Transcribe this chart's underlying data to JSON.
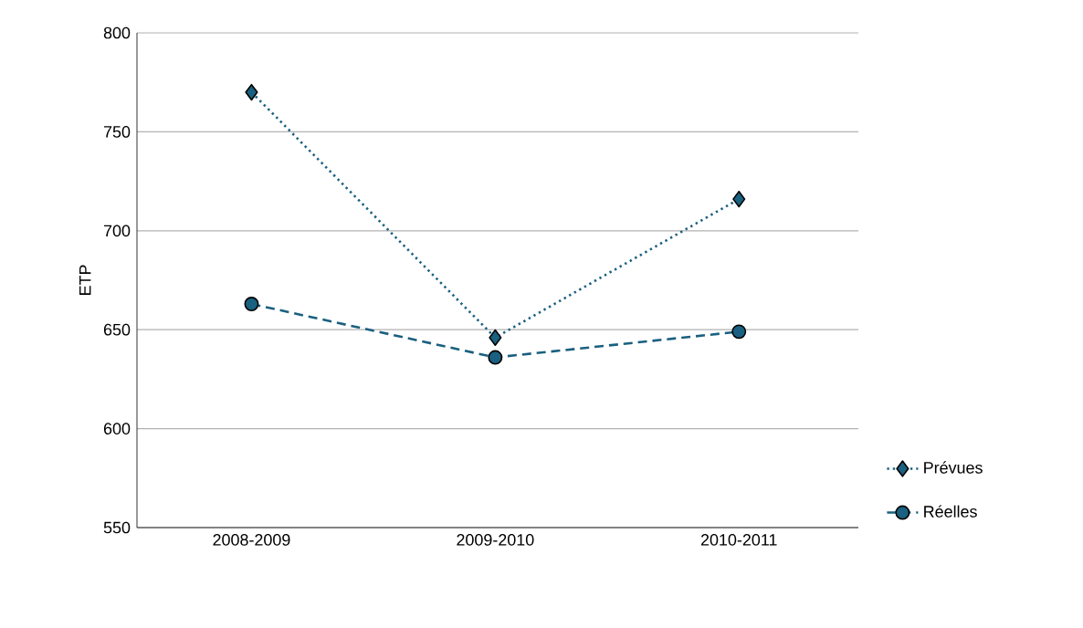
{
  "chart_data": {
    "type": "line",
    "ylabel": "ETP",
    "categories": [
      "2008-2009",
      "2009-2010",
      "2010-2011"
    ],
    "series": [
      {
        "name": "Prévues",
        "color": "#1a6080",
        "values": [
          770,
          646,
          716
        ],
        "marker": "diamond",
        "line_style": "dotted"
      },
      {
        "name": "Réelles",
        "color": "#1a6080",
        "values": [
          663,
          636,
          649
        ],
        "marker": "circle",
        "line_style": "dashed"
      }
    ],
    "ylim": [
      550,
      800
    ],
    "yticks": [
      550,
      600,
      650,
      700,
      750,
      800
    ],
    "grid": "y",
    "legend": "right"
  }
}
